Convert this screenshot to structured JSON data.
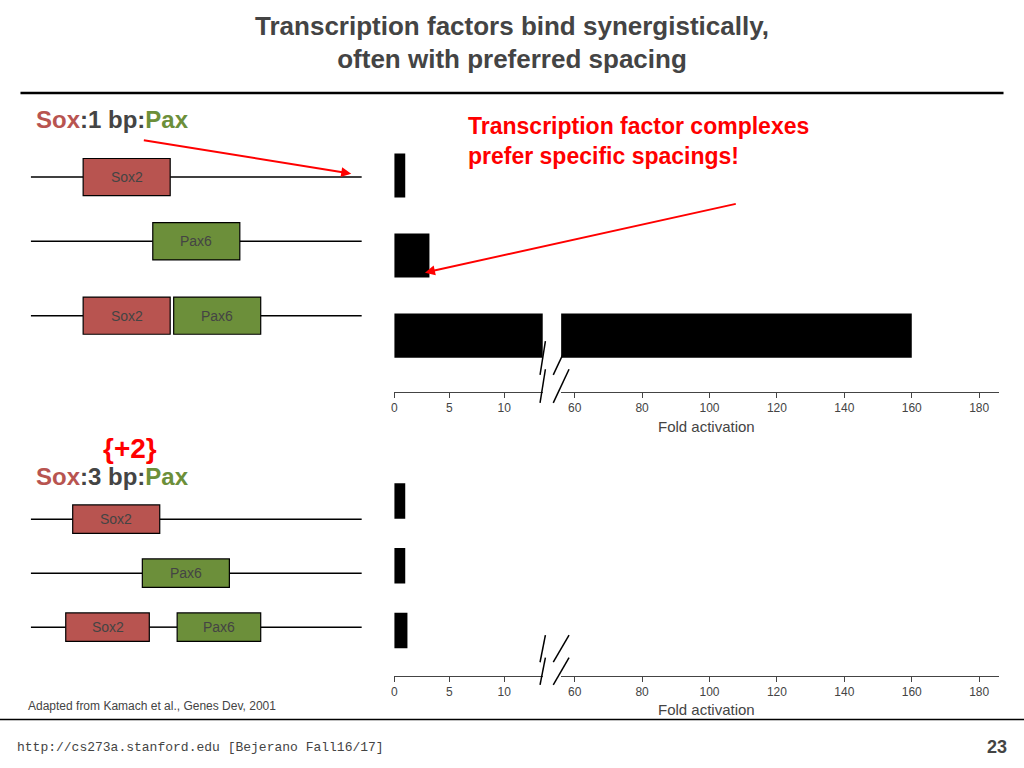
{
  "title": "Transcription factors bind synergistically,\noften with preferred spacing",
  "annotation": {
    "text": "Transcription factor complexes\nprefer specific spacings!",
    "color": "red"
  },
  "footer": "http://cs273a.stanford.edu [Bejerano Fall16/17]",
  "page": "23",
  "source": "Adapted from Kamach et al., Genes Dev, 2001",
  "diagrams": [
    {
      "heading": [
        {
          "text": "Sox",
          "color": "#b85450"
        },
        {
          "text": ":1 bp:"
        },
        {
          "text": "Pax",
          "color": "#6c8f3a"
        }
      ],
      "rows": [
        [
          {
            "text": "Sox2",
            "color": "#b85450"
          }
        ],
        [
          {
            "text": "Pax6",
            "color": "#6c8f3a"
          }
        ],
        [
          {
            "text": "Sox2",
            "color": "#b85450"
          },
          {
            "text": "Pax6",
            "color": "#6c8f3a"
          }
        ]
      ]
    },
    {
      "note": {
        "text": "{+2}",
        "color": "red"
      },
      "heading": [
        {
          "text": "Sox",
          "color": "#b85450"
        },
        {
          "text": ":3 bp:"
        },
        {
          "text": "Pax",
          "color": "#6c8f3a"
        }
      ],
      "rows": [
        [
          {
            "text": "Sox2",
            "color": "#b85450"
          }
        ],
        [
          {
            "text": "Pax6",
            "color": "#6c8f3a"
          }
        ],
        [
          {
            "text": "Sox2",
            "color": "#b85450"
          },
          {
            "text": "Pax6",
            "color": "#6c8f3a"
          }
        ]
      ]
    }
  ],
  "chart_data": [
    {
      "type": "bar",
      "orientation": "horizontal",
      "categories": [
        null,
        null,
        null
      ],
      "values": [
        1.0,
        3.2,
        160.0
      ],
      "color": "#000000",
      "xlabel": "Fold activation",
      "xlim": [
        [
          0,
          13.5
        ],
        [
          56,
          186
        ]
      ],
      "xticks": [
        [
          0,
          5,
          10
        ],
        [
          60,
          80,
          100,
          120,
          140,
          160,
          180
        ]
      ],
      "grid": false,
      "tick_labels": "x"
    },
    {
      "type": "bar",
      "orientation": "horizontal",
      "categories": [
        null,
        null,
        null
      ],
      "values": [
        1.0,
        1.0,
        1.2
      ],
      "color": "#000000",
      "xlabel": "Fold activation",
      "xlim": [
        [
          0,
          13.5
        ],
        [
          56,
          186
        ]
      ],
      "xticks": [
        [
          0,
          5,
          10
        ],
        [
          60,
          80,
          100,
          120,
          140,
          160,
          180
        ]
      ],
      "grid": false,
      "tick_labels": "x"
    }
  ]
}
